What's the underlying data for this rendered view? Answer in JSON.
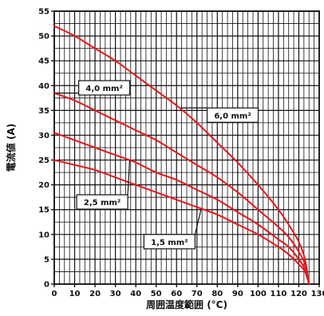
{
  "chart_data": {
    "type": "line",
    "title": "",
    "xlabel": "周囲温度範囲 (°C)",
    "ylabel": "電流値 (A)",
    "xlim": [
      0,
      130
    ],
    "ylim": [
      0,
      55
    ],
    "x_ticks": [
      "0",
      "10",
      "20",
      "30",
      "40",
      "50",
      "60",
      "70",
      "80",
      "90",
      "100",
      "110",
      "120",
      "130"
    ],
    "y_ticks": [
      "0",
      "5",
      "10",
      "15",
      "20",
      "25",
      "30",
      "35",
      "40",
      "45",
      "50",
      "55"
    ],
    "grid": true,
    "line_color": "#e8161a",
    "series": [
      {
        "name": "6,0 mm²",
        "x": [
          0,
          10,
          20,
          30,
          40,
          50,
          60,
          70,
          80,
          90,
          100,
          110,
          115,
          120,
          123,
          125
        ],
        "y": [
          52,
          50,
          47.5,
          45,
          42,
          39,
          36,
          32.5,
          28.5,
          24.5,
          20,
          15,
          12,
          8.5,
          5,
          0
        ]
      },
      {
        "name": "4,0 mm²",
        "x": [
          0,
          10,
          20,
          30,
          40,
          50,
          60,
          70,
          80,
          90,
          100,
          110,
          115,
          120,
          123,
          125
        ],
        "y": [
          38.5,
          37,
          35,
          33,
          31,
          29,
          26.5,
          24,
          21.5,
          18.5,
          15,
          11.5,
          9.5,
          6.5,
          4,
          0
        ]
      },
      {
        "name": "2,5 mm²",
        "x": [
          0,
          10,
          20,
          30,
          40,
          50,
          60,
          70,
          80,
          90,
          100,
          110,
          115,
          120,
          123,
          125
        ],
        "y": [
          30.5,
          29,
          27.5,
          26,
          24.5,
          22.5,
          21,
          19,
          17,
          14.5,
          12,
          9,
          7.5,
          5,
          3,
          0
        ]
      },
      {
        "name": "1,5 mm²",
        "x": [
          0,
          10,
          20,
          30,
          40,
          50,
          60,
          70,
          80,
          90,
          100,
          110,
          115,
          120,
          123,
          125
        ],
        "y": [
          25,
          24,
          23,
          21.5,
          20,
          18.5,
          17,
          15.5,
          14,
          12,
          10,
          7.5,
          6,
          4,
          2.5,
          0
        ]
      }
    ],
    "annotations": [
      {
        "text": "4,0 mm²",
        "series": "4,0 mm²",
        "box_x": 12,
        "box_y": 41,
        "point_x": 0,
        "point_y": 38.5
      },
      {
        "text": "6,0 mm²",
        "series": "6,0 mm²",
        "box_x": 75,
        "box_y": 35.5,
        "point_x": 62,
        "point_y": 35.5
      },
      {
        "text": "2,5 mm²",
        "series": "2,5 mm²",
        "box_x": 11,
        "box_y": 18,
        "point_x": 37,
        "point_y": 25
      },
      {
        "text": "1,5 mm²",
        "series": "1,5 mm²",
        "box_x": 44,
        "box_y": 10,
        "point_x": 72,
        "point_y": 15
      }
    ]
  }
}
